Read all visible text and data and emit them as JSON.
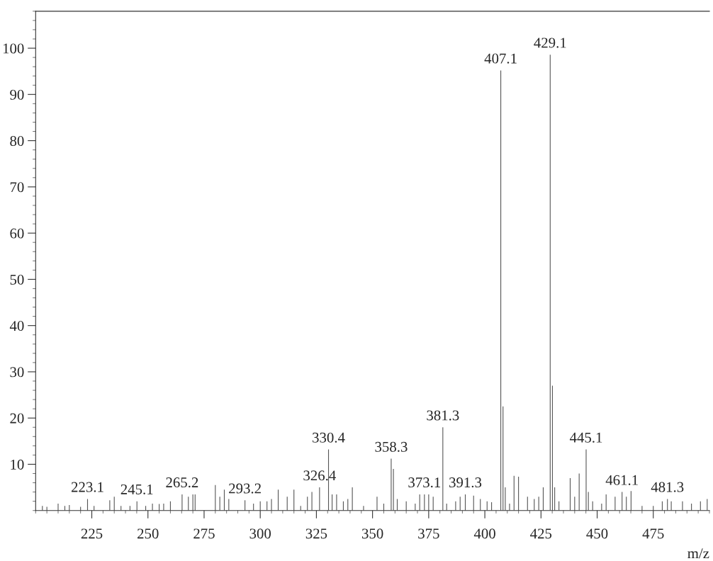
{
  "chart_data": {
    "type": "bar",
    "xlabel": "m/z",
    "color": "#555555",
    "x": [
      203,
      205,
      210,
      213,
      215,
      220,
      223.1,
      226,
      233,
      235,
      238,
      242,
      245.1,
      249,
      252,
      255,
      257,
      260,
      265.2,
      268,
      270,
      271,
      280,
      282,
      284,
      286,
      293.2,
      297,
      300,
      303,
      305,
      308,
      312,
      315,
      318,
      321,
      323,
      326.4,
      330.4,
      332,
      334,
      337,
      339,
      341,
      346,
      352,
      355,
      358.3,
      359.3,
      361,
      365,
      369,
      371,
      373.1,
      375,
      377,
      381.3,
      383,
      387,
      389,
      391.3,
      395,
      398,
      401,
      403,
      407.1,
      408.1,
      409.1,
      411,
      413,
      415,
      419,
      422,
      424,
      426,
      429.1,
      430.1,
      431.1,
      433,
      438,
      440,
      442,
      445.1,
      446.1,
      448,
      452,
      454,
      458,
      461.1,
      463,
      465.1,
      470,
      475,
      479,
      481.3,
      483,
      488,
      492,
      496,
      499
    ],
    "values": [
      1,
      0.8,
      1.5,
      1,
      1.2,
      0.8,
      2.5,
      1,
      2.2,
      3,
      1,
      1,
      2,
      1,
      1.5,
      1.4,
      1.5,
      2,
      3.5,
      3,
      3.5,
      3.5,
      5.5,
      3,
      4.5,
      2.5,
      2.2,
      1.5,
      2,
      2,
      2.5,
      4.5,
      3,
      4.5,
      1,
      3,
      4,
      5,
      13.2,
      3.5,
      3.5,
      2,
      2.5,
      5,
      1,
      3,
      1.5,
      11.2,
      9,
      2.5,
      2,
      1.5,
      3.5,
      3.5,
      3.5,
      3,
      18,
      1.5,
      2,
      3,
      3.5,
      3.2,
      2.5,
      2,
      1.8,
      95.2,
      22.5,
      5,
      1.5,
      7.5,
      7.3,
      3,
      2.5,
      3,
      5,
      98.6,
      27,
      5,
      2,
      7,
      3,
      8,
      13.2,
      4,
      2,
      1.5,
      3.5,
      3,
      4,
      3,
      4.2,
      1,
      1,
      2,
      2.5,
      2,
      2,
      1.5,
      2,
      2.5
    ],
    "xlim": [
      200,
      500
    ],
    "xticks": [
      225,
      250,
      275,
      300,
      325,
      350,
      375,
      400,
      425,
      450,
      475
    ],
    "ylim": [
      0,
      108
    ],
    "yticks": [
      10,
      20,
      30,
      40,
      50,
      60,
      70,
      80,
      90,
      100
    ],
    "annotations": [
      {
        "text": "223.1",
        "x": 223.1,
        "y": 2.5
      },
      {
        "text": "245.1",
        "x": 245.1,
        "y": 2
      },
      {
        "text": "265.2",
        "x": 265.2,
        "y": 3.5
      },
      {
        "text": "293.2",
        "x": 293.2,
        "y": 2.2
      },
      {
        "text": "326.4",
        "x": 326.4,
        "y": 5
      },
      {
        "text": "330.4",
        "x": 330.4,
        "y": 13.2
      },
      {
        "text": "358.3",
        "x": 358.3,
        "y": 11.2
      },
      {
        "text": "373.1",
        "x": 373.1,
        "y": 3.5
      },
      {
        "text": "381.3",
        "x": 381.3,
        "y": 18
      },
      {
        "text": "391.3",
        "x": 391.3,
        "y": 3.5
      },
      {
        "text": "407.1",
        "x": 407.1,
        "y": 95.2
      },
      {
        "text": "429.1",
        "x": 429.1,
        "y": 98.6
      },
      {
        "text": "445.1",
        "x": 445.1,
        "y": 13.2
      },
      {
        "text": "461.1",
        "x": 461.1,
        "y": 4
      },
      {
        "text": "481.3",
        "x": 481.3,
        "y": 2.5
      }
    ]
  }
}
